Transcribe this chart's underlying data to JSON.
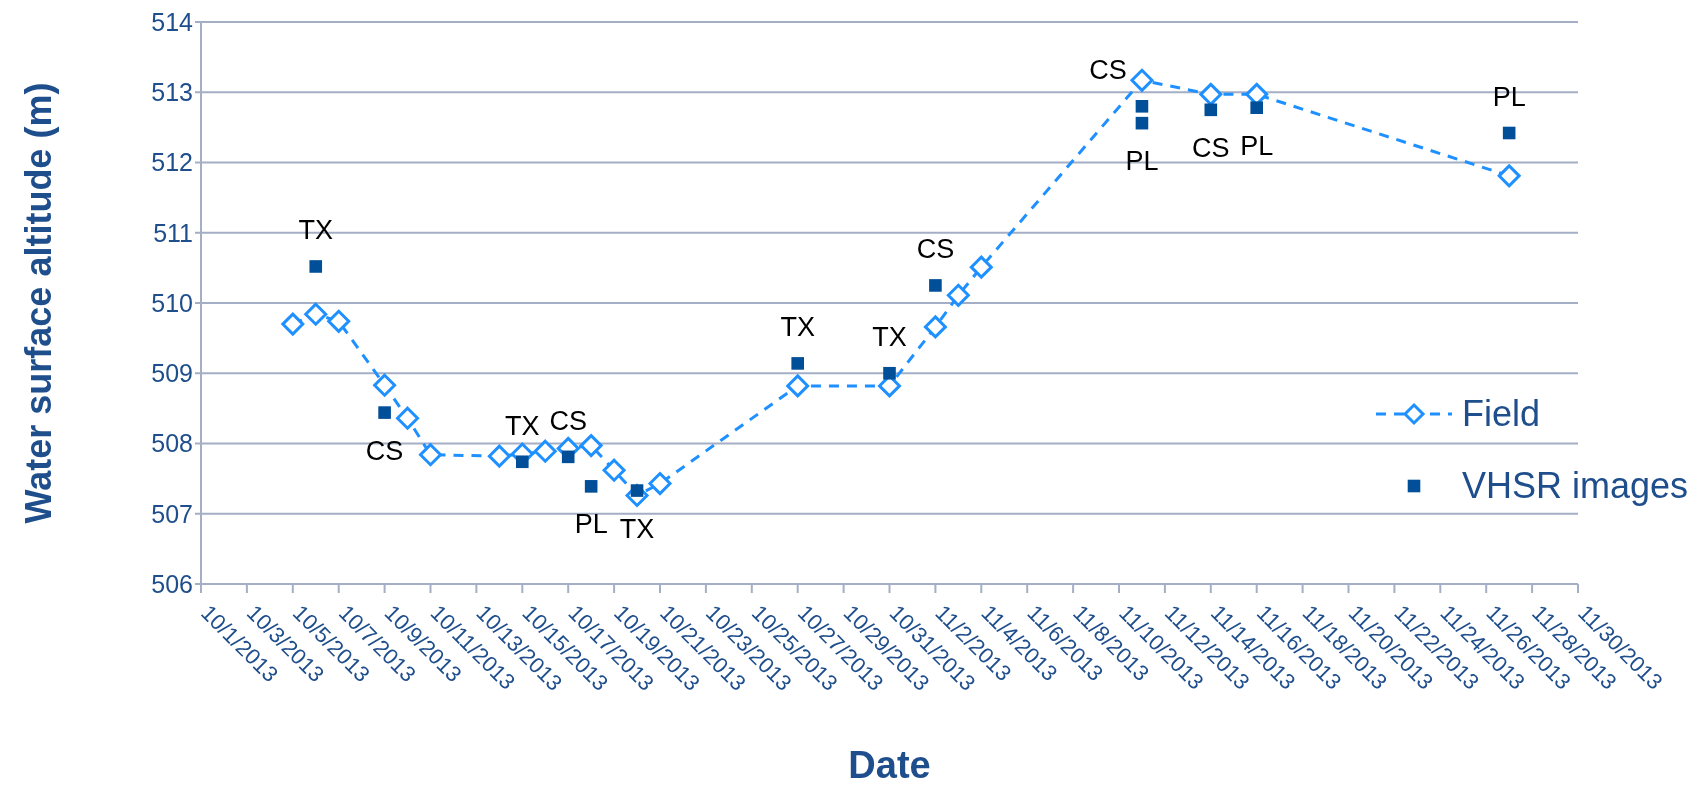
{
  "chart_data": {
    "type": "line",
    "xlabel": "Date",
    "ylabel": "Water surface altitude (m)",
    "series": [
      {
        "name": "Field",
        "color": "#1e90ff",
        "marker": "diamond",
        "line_style": "dashed",
        "x": [
          "2013-10-05",
          "2013-10-06",
          "2013-10-07",
          "2013-10-09",
          "2013-10-10",
          "2013-10-11",
          "2013-10-14",
          "2013-10-15",
          "2013-10-16",
          "2013-10-17",
          "2013-10-18",
          "2013-10-19",
          "2013-10-20",
          "2013-10-21",
          "2013-10-27",
          "2013-10-31",
          "2013-11-02",
          "2013-11-03",
          "2013-11-04",
          "2013-11-11",
          "2013-11-14",
          "2013-11-16",
          "2013-11-27"
        ],
        "values": [
          509.7,
          509.84,
          509.74,
          508.83,
          508.36,
          507.84,
          507.82,
          507.85,
          507.89,
          507.93,
          507.97,
          507.62,
          507.26,
          507.43,
          508.82,
          508.82,
          509.66,
          510.11,
          510.51,
          513.17,
          512.97,
          512.97,
          511.81
        ]
      },
      {
        "name": "VHSR images",
        "type": "scatter",
        "color": "#004f98",
        "marker": "square",
        "x": [
          "2013-10-06",
          "2013-10-09",
          "2013-10-15",
          "2013-10-17",
          "2013-10-18",
          "2013-10-20",
          "2013-10-27",
          "2013-10-31",
          "2013-11-02",
          "2013-11-11",
          "2013-11-11",
          "2013-11-14",
          "2013-11-16",
          "2013-11-27"
        ],
        "values": [
          510.52,
          508.44,
          507.74,
          507.81,
          507.39,
          507.33,
          509.14,
          509.0,
          510.25,
          512.8,
          512.56,
          512.75,
          512.78,
          512.42
        ]
      }
    ],
    "annotations": [
      {
        "text": "TX",
        "x": "2013-10-06",
        "y": 510.52
      },
      {
        "text": "CS",
        "x": "2013-10-09",
        "y": 508.44
      },
      {
        "text": "TX",
        "x": "2013-10-15",
        "y": 507.74
      },
      {
        "text": "CS",
        "x": "2013-10-17",
        "y": 507.81
      },
      {
        "text": "PL",
        "x": "2013-10-18",
        "y": 507.39
      },
      {
        "text": "TX",
        "x": "2013-10-20",
        "y": 507.33
      },
      {
        "text": "TX",
        "x": "2013-10-27",
        "y": 509.14
      },
      {
        "text": "TX",
        "x": "2013-10-31",
        "y": 509.0
      },
      {
        "text": "CS",
        "x": "2013-11-02",
        "y": 510.25
      },
      {
        "text": "CS",
        "x": "2013-11-14",
        "y": 512.75
      },
      {
        "text": "CS",
        "x": "2013-11-11",
        "y": 512.8
      },
      {
        "text": "PL",
        "x": "2013-11-11",
        "y": 512.56
      },
      {
        "text": "PL",
        "x": "2013-11-16",
        "y": 512.78
      },
      {
        "text": "PL",
        "x": "2013-11-27",
        "y": 512.42
      }
    ],
    "xlim": [
      "2013-10-01",
      "2013-11-30"
    ],
    "xticks": [
      {
        "value": "2013-10-01",
        "label": "10/1/2013"
      },
      {
        "value": "2013-10-03",
        "label": "10/3/2013"
      },
      {
        "value": "2013-10-05",
        "label": "10/5/2013"
      },
      {
        "value": "2013-10-07",
        "label": "10/7/2013"
      },
      {
        "value": "2013-10-09",
        "label": "10/9/2013"
      },
      {
        "value": "2013-10-11",
        "label": "10/11/2013"
      },
      {
        "value": "2013-10-13",
        "label": "10/13/2013"
      },
      {
        "value": "2013-10-15",
        "label": "10/15/2013"
      },
      {
        "value": "2013-10-17",
        "label": "10/17/2013"
      },
      {
        "value": "2013-10-19",
        "label": "10/19/2013"
      },
      {
        "value": "2013-10-21",
        "label": "10/21/2013"
      },
      {
        "value": "2013-10-23",
        "label": "10/23/2013"
      },
      {
        "value": "2013-10-25",
        "label": "10/25/2013"
      },
      {
        "value": "2013-10-27",
        "label": "10/27/2013"
      },
      {
        "value": "2013-10-29",
        "label": "10/29/2013"
      },
      {
        "value": "2013-10-31",
        "label": "10/31/2013"
      },
      {
        "value": "2013-11-02",
        "label": "11/2/2013"
      },
      {
        "value": "2013-11-04",
        "label": "11/4/2013"
      },
      {
        "value": "2013-11-06",
        "label": "11/6/2013"
      },
      {
        "value": "2013-11-08",
        "label": "11/8/2013"
      },
      {
        "value": "2013-11-10",
        "label": "11/10/2013"
      },
      {
        "value": "2013-11-12",
        "label": "11/12/2013"
      },
      {
        "value": "2013-11-14",
        "label": "11/14/2013"
      },
      {
        "value": "2013-11-16",
        "label": "11/16/2013"
      },
      {
        "value": "2013-11-18",
        "label": "11/18/2013"
      },
      {
        "value": "2013-11-20",
        "label": "11/20/2013"
      },
      {
        "value": "2013-11-22",
        "label": "11/22/2013"
      },
      {
        "value": "2013-11-24",
        "label": "11/24/2013"
      },
      {
        "value": "2013-11-26",
        "label": "11/26/2013"
      },
      {
        "value": "2013-11-28",
        "label": "11/28/2013"
      },
      {
        "value": "2013-11-30",
        "label": "11/30/2013"
      }
    ],
    "ylim": [
      506,
      514
    ],
    "yticks": [
      506,
      507,
      508,
      509,
      510,
      511,
      512,
      513,
      514
    ],
    "grid": "y",
    "legend": "right"
  }
}
